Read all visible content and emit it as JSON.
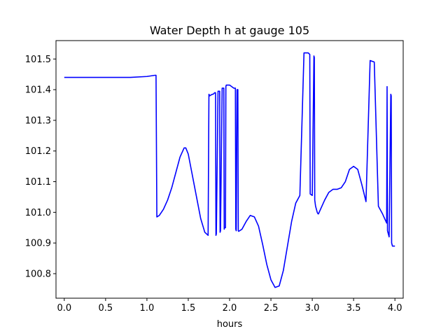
{
  "chart_data": {
    "type": "line",
    "title": "Water Depth h at gauge 105",
    "xlabel": "hours",
    "ylabel": "",
    "xlim": [
      -0.1,
      4.1
    ],
    "ylim": [
      100.72,
      101.56
    ],
    "x_ticks": [
      0.0,
      0.5,
      1.0,
      1.5,
      2.0,
      2.5,
      3.0,
      3.5,
      4.0
    ],
    "x_tick_labels": [
      "0.0",
      "0.5",
      "1.0",
      "1.5",
      "2.0",
      "2.5",
      "3.0",
      "3.5",
      "4.0"
    ],
    "y_ticks": [
      100.8,
      100.9,
      101.0,
      101.1,
      101.2,
      101.3,
      101.4,
      101.5
    ],
    "y_tick_labels": [
      "100.8",
      "100.9",
      "101.0",
      "101.1",
      "101.2",
      "101.3",
      "101.4",
      "101.5"
    ],
    "grid": false,
    "legend": "none",
    "series": [
      {
        "color": "#0000ff",
        "x": [
          0.0,
          0.5,
          0.8,
          1.0,
          1.1,
          1.11,
          1.12,
          1.15,
          1.2,
          1.25,
          1.3,
          1.35,
          1.4,
          1.45,
          1.47,
          1.5,
          1.55,
          1.6,
          1.65,
          1.7,
          1.74,
          1.75,
          1.76,
          1.79,
          1.8,
          1.82,
          1.83,
          1.835,
          1.84,
          1.86,
          1.88,
          1.885,
          1.89,
          1.91,
          1.93,
          1.935,
          1.94,
          1.95,
          1.955,
          1.96,
          2.0,
          2.05,
          2.07,
          2.075,
          2.08,
          2.09,
          2.1,
          2.105,
          2.11,
          2.15,
          2.2,
          2.25,
          2.3,
          2.35,
          2.4,
          2.45,
          2.5,
          2.55,
          2.6,
          2.65,
          2.7,
          2.75,
          2.8,
          2.85,
          2.9,
          2.95,
          2.97,
          2.975,
          3.0,
          3.02,
          3.025,
          3.03,
          3.04,
          3.06,
          3.07,
          3.075,
          3.1,
          3.15,
          3.2,
          3.25,
          3.3,
          3.35,
          3.4,
          3.45,
          3.5,
          3.55,
          3.6,
          3.65,
          3.7,
          3.75,
          3.8,
          3.85,
          3.9,
          3.905,
          3.91,
          3.93,
          3.95,
          3.955,
          3.96,
          3.97,
          3.975,
          3.98,
          3.99,
          4.0
        ],
        "y": [
          101.44,
          101.44,
          101.44,
          101.443,
          101.447,
          101.447,
          100.985,
          100.99,
          101.01,
          101.04,
          101.08,
          101.13,
          101.18,
          101.21,
          101.21,
          101.19,
          101.12,
          101.05,
          100.98,
          100.935,
          100.925,
          101.385,
          101.38,
          101.385,
          101.385,
          101.39,
          101.39,
          100.925,
          100.93,
          101.395,
          101.395,
          100.935,
          100.94,
          101.405,
          101.405,
          100.945,
          100.95,
          100.95,
          101.41,
          101.415,
          101.415,
          101.405,
          101.405,
          100.945,
          100.94,
          101.4,
          101.4,
          100.94,
          100.938,
          100.945,
          100.97,
          100.99,
          100.985,
          100.955,
          100.895,
          100.83,
          100.78,
          100.755,
          100.76,
          100.81,
          100.89,
          100.97,
          101.03,
          101.055,
          101.52,
          101.52,
          101.515,
          101.06,
          101.055,
          101.51,
          101.505,
          101.04,
          101.02,
          101.0,
          100.995,
          100.995,
          101.01,
          101.04,
          101.065,
          101.075,
          101.075,
          101.08,
          101.1,
          101.14,
          101.15,
          101.14,
          101.09,
          101.035,
          101.495,
          101.49,
          101.02,
          100.995,
          100.965,
          101.41,
          100.94,
          100.92,
          101.385,
          101.38,
          100.9,
          100.89,
          100.89,
          100.89,
          100.89,
          100.89
        ]
      }
    ]
  }
}
